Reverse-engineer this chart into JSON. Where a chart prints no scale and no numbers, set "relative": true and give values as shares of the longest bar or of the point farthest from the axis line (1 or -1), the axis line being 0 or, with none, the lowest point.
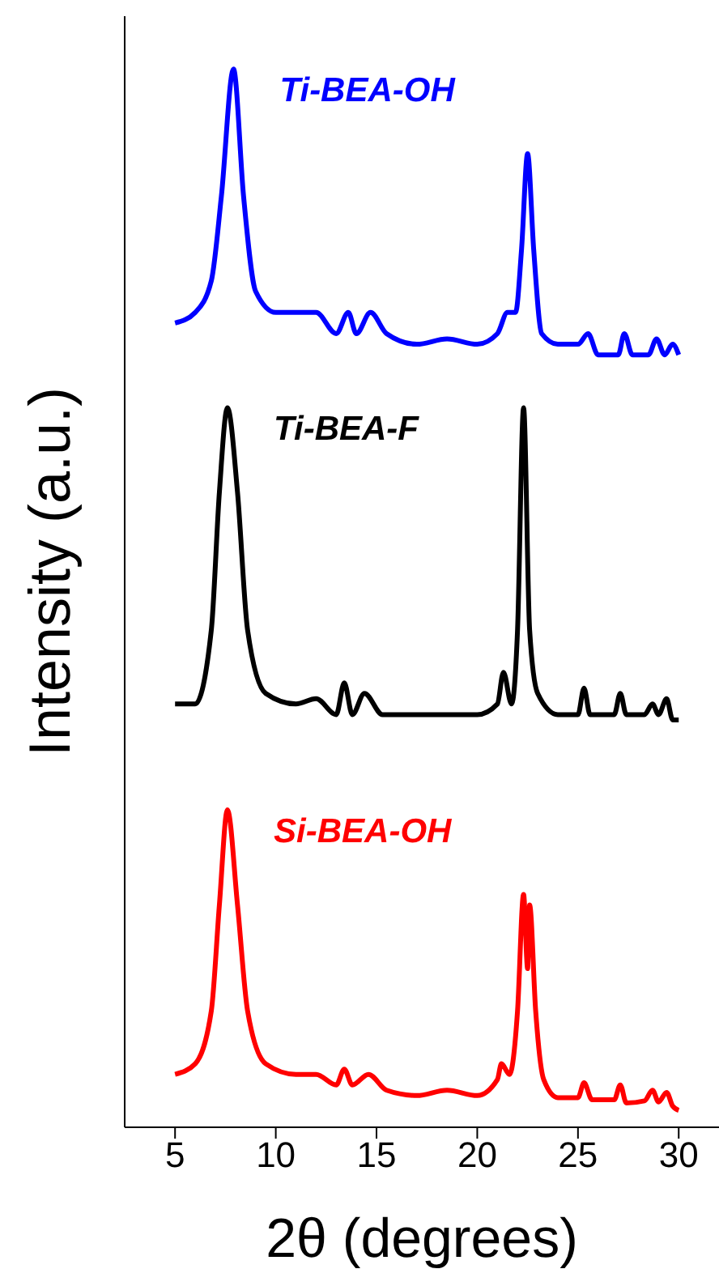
{
  "chart_data": {
    "type": "line",
    "relative": true,
    "xlabel": "2θ (degrees)",
    "ylabel": "Intensity (a.u.)",
    "xlim": [
      2.5,
      32
    ],
    "xticks": [
      5,
      10,
      15,
      20,
      25,
      30
    ],
    "grid": false,
    "legend": false,
    "marker": "none",
    "line_style": "solid",
    "series": [
      {
        "name": "Ti-BEA-OH",
        "color": "#0000ff",
        "x": [
          5,
          6,
          6.8,
          7.3,
          7.9,
          8.4,
          9,
          10,
          12,
          13,
          13.6,
          14,
          14.7,
          15.5,
          17,
          18.5,
          20,
          21,
          21.5,
          21.9,
          22.2,
          22.5,
          22.8,
          23.2,
          24,
          25,
          25.5,
          26,
          27,
          27.3,
          27.7,
          28.5,
          28.9,
          29.3,
          29.7,
          30
        ],
        "values": [
          0.76,
          0.77,
          0.8,
          0.88,
          1,
          0.88,
          0.79,
          0.77,
          0.77,
          0.75,
          0.77,
          0.75,
          0.77,
          0.75,
          0.74,
          0.745,
          0.74,
          0.75,
          0.77,
          0.77,
          0.83,
          0.92,
          0.83,
          0.75,
          0.74,
          0.74,
          0.75,
          0.73,
          0.73,
          0.75,
          0.73,
          0.73,
          0.745,
          0.73,
          0.74,
          0.73
        ]
      },
      {
        "name": "Ti-BEA-F",
        "color": "#000000",
        "x": [
          5,
          6,
          6.8,
          7.2,
          7.6,
          8.1,
          8.6,
          9.5,
          11,
          12,
          13,
          13.4,
          13.8,
          14.4,
          15.3,
          17,
          18.5,
          20,
          21,
          21.3,
          21.7,
          22,
          22.3,
          22.6,
          23,
          24,
          25,
          25.3,
          25.6,
          26.8,
          27.1,
          27.4,
          28.3,
          28.7,
          29,
          29.4,
          29.7,
          30
        ],
        "values": [
          0.4,
          0.4,
          0.47,
          0.6,
          0.68,
          0.6,
          0.47,
          0.41,
          0.4,
          0.405,
          0.39,
          0.42,
          0.39,
          0.41,
          0.39,
          0.39,
          0.39,
          0.39,
          0.4,
          0.43,
          0.4,
          0.47,
          0.68,
          0.47,
          0.41,
          0.39,
          0.39,
          0.415,
          0.39,
          0.39,
          0.41,
          0.39,
          0.39,
          0.4,
          0.39,
          0.405,
          0.385,
          0.385
        ]
      },
      {
        "name": "Si-BEA-OH",
        "color": "#ff0000",
        "x": [
          5,
          6,
          6.8,
          7.2,
          7.6,
          8.1,
          8.6,
          9.5,
          11,
          12,
          13,
          13.4,
          13.8,
          14.6,
          15.5,
          17,
          18.5,
          20,
          21,
          21.2,
          21.6,
          22,
          22.3,
          22.5,
          22.6,
          22.9,
          23.3,
          24,
          25,
          25.3,
          25.7,
          26.8,
          27.1,
          27.4,
          28.3,
          28.7,
          29,
          29.4,
          29.7,
          30
        ],
        "values": [
          0.05,
          0.06,
          0.11,
          0.21,
          0.3,
          0.21,
          0.11,
          0.06,
          0.05,
          0.05,
          0.04,
          0.055,
          0.04,
          0.05,
          0.035,
          0.03,
          0.035,
          0.03,
          0.045,
          0.06,
          0.05,
          0.11,
          0.22,
          0.15,
          0.21,
          0.11,
          0.045,
          0.028,
          0.028,
          0.042,
          0.026,
          0.026,
          0.04,
          0.023,
          0.025,
          0.035,
          0.024,
          0.033,
          0.02,
          0.016
        ]
      }
    ]
  }
}
